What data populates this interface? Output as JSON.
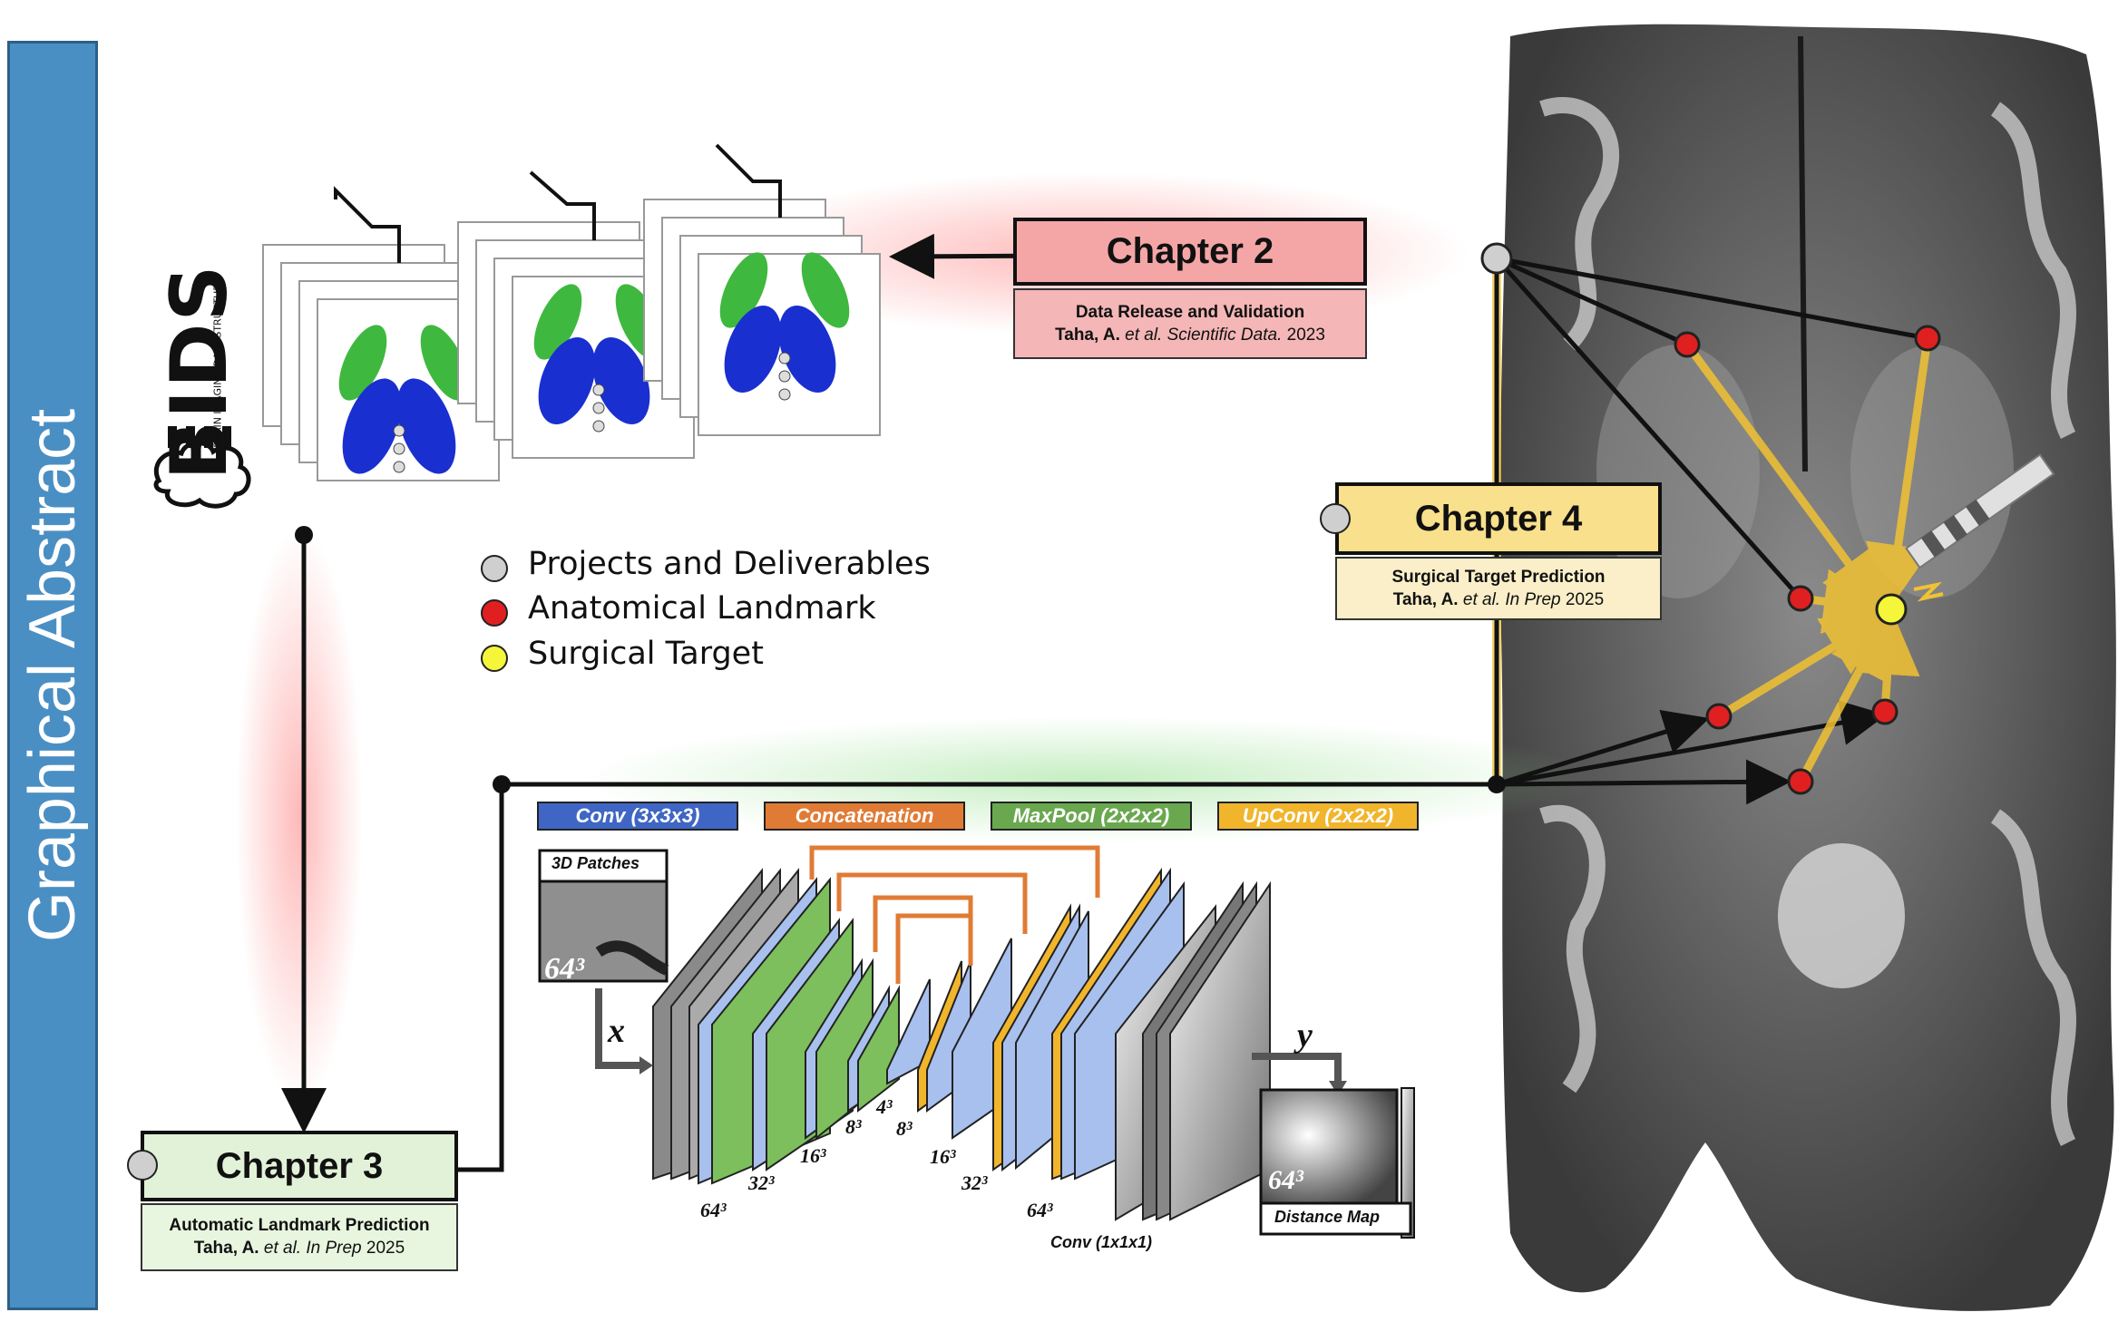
{
  "sidebar": {
    "title": "Graphical Abstract"
  },
  "bids": {
    "logo_text": "BIDS",
    "tagline": "BRAIN IMAGING DATA STRUCTURE"
  },
  "chapter2": {
    "title": "Chapter 2",
    "subtitle": "Data Release and Validation",
    "author": "Taha, A.",
    "etal": "et al.",
    "journal": "Scientific Data.",
    "year": "2023"
  },
  "chapter3": {
    "title": "Chapter 3",
    "subtitle": "Automatic Landmark Prediction",
    "author": "Taha, A.",
    "etal": "et al.",
    "journal": "In Prep",
    "year": "2025"
  },
  "chapter4": {
    "title": "Chapter 4",
    "subtitle": "Surgical Target Prediction",
    "author": "Taha, A.",
    "etal": "et al.",
    "journal": "In Prep",
    "year": "2025"
  },
  "legend": [
    {
      "label": "Projects and Deliverables",
      "color": "#cfcfcf"
    },
    {
      "label": "Anatomical Landmark",
      "color": "#e02020"
    },
    {
      "label": "Surgical Target",
      "color": "#f5f53a"
    }
  ],
  "unet": {
    "keys": [
      {
        "label": "Conv (3x3x3)",
        "color": "#3f66c4"
      },
      {
        "label": "Concatenation",
        "color": "#e07b35"
      },
      {
        "label": "MaxPool (2x2x2)",
        "color": "#6aa84f"
      },
      {
        "label": "UpConv (2x2x2)",
        "color": "#f1b52c"
      }
    ],
    "input_title": "3D Patches",
    "input_size": "64³",
    "x_label": "x",
    "y_label": "y",
    "output_size": "64³",
    "output_title": "Distance Map",
    "final_conv": "Conv (1x1x1)",
    "dims": [
      "64³",
      "32³",
      "16³",
      "8³",
      "4³",
      "8³",
      "16³",
      "32³",
      "64³"
    ]
  },
  "colors": {
    "chapter2": "#f4a6a6",
    "chapter3": "#e2f2d8",
    "chapter4": "#f8e08c",
    "landmark": "#e02020",
    "target": "#f5f53a",
    "node": "#cfcfcf"
  }
}
